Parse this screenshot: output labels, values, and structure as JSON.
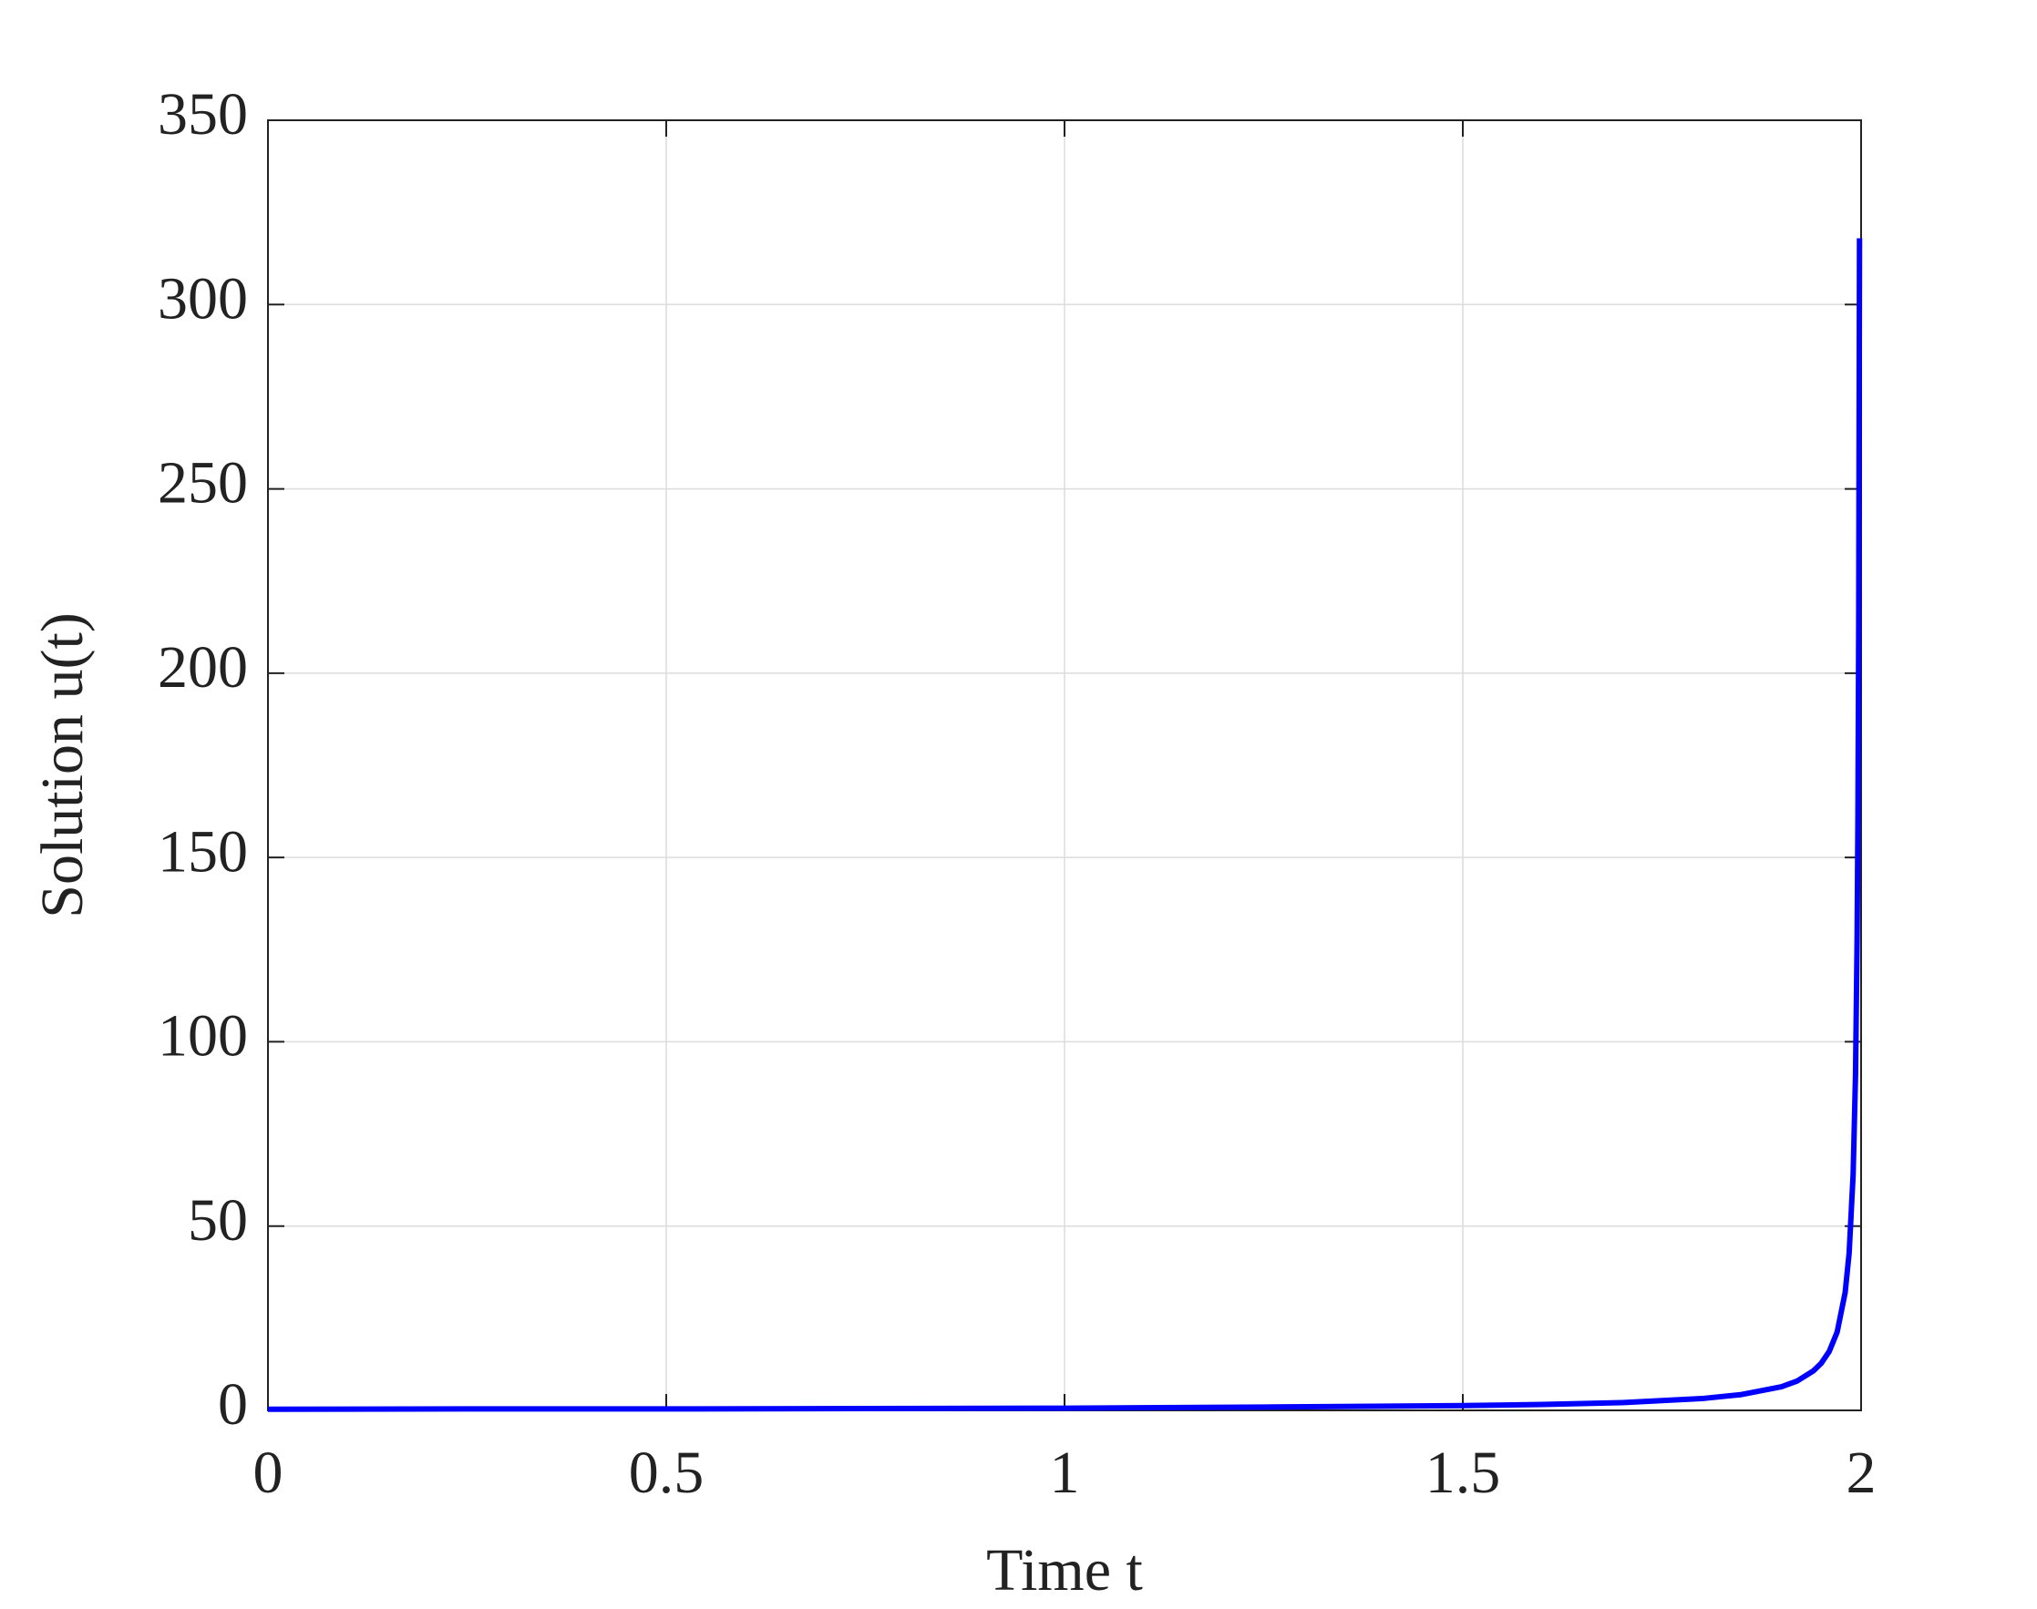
{
  "chart_data": {
    "type": "line",
    "x_label": "Time t",
    "y_label": "Solution u(t)",
    "xlim": [
      0,
      2
    ],
    "ylim": [
      0,
      350
    ],
    "xticks": [
      0,
      0.5,
      1,
      1.5,
      2
    ],
    "yticks": [
      0,
      50,
      100,
      150,
      200,
      250,
      300,
      350
    ],
    "grid": true,
    "x": [
      0,
      0.25,
      0.5,
      0.75,
      1,
      1.25,
      1.5,
      1.6,
      1.7,
      1.8,
      1.85,
      1.9,
      1.92,
      1.94,
      1.95,
      1.96,
      1.97,
      1.98,
      1.985,
      1.99,
      1.993,
      1.995,
      1.996,
      1.997,
      1.998
    ],
    "series": [
      {
        "color": "#0000ff",
        "values": [
          0.3,
          0.4,
          0.4,
          0.5,
          0.6,
          0.9,
          1.3,
          1.6,
          2.1,
          3.2,
          4.3,
          6.4,
          8,
          10.7,
          12.8,
          16,
          21.3,
          32,
          42.7,
          64,
          91,
          128,
          160,
          213,
          318
        ]
      }
    ]
  }
}
